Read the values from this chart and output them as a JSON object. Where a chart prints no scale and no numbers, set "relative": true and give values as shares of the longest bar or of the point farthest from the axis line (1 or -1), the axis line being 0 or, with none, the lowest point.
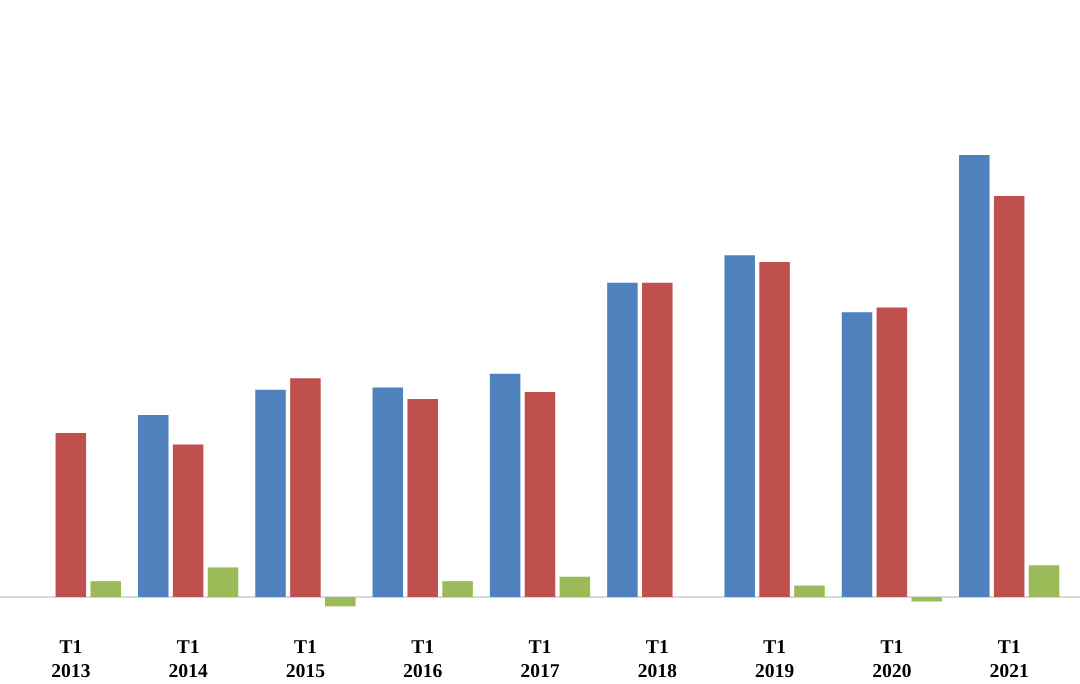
{
  "chart_data": {
    "type": "bar",
    "relative": true,
    "categories": [
      "T1 2013",
      "T1 2014",
      "T1 2015",
      "T1 2016",
      "T1 2017",
      "T1 2018",
      "T1 2019",
      "T1 2020",
      "T1 2021"
    ],
    "series": [
      {
        "color": "#4f81bd",
        "values": [
          null,
          0.412,
          0.469,
          0.474,
          0.505,
          0.711,
          0.773,
          0.644,
          1
        ]
      },
      {
        "color": "#c0504d",
        "values": [
          0.371,
          0.345,
          0.495,
          0.448,
          0.464,
          0.711,
          0.758,
          0.655,
          0.907
        ]
      },
      {
        "color": "#9bbb59",
        "values": [
          0.036,
          0.067,
          -0.021,
          0.036,
          0.046,
          0,
          0.026,
          -0.01,
          0.072
        ]
      }
    ]
  }
}
